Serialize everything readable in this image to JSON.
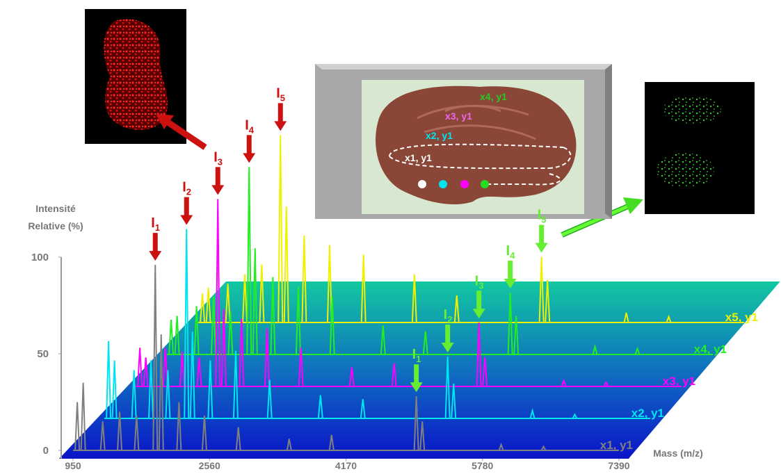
{
  "chart_data": {
    "type": "waterfall",
    "ylabel": [
      "Intensité",
      "Relative  (%)"
    ],
    "xlabel": "Mass (m/z)",
    "xlim": [
      950,
      7390
    ],
    "xticks": [
      950,
      2560,
      4170,
      5780,
      7390
    ],
    "ylim": [
      0,
      100
    ],
    "yticks": [
      0,
      50,
      100
    ],
    "x": [
      1000,
      1070,
      1300,
      1500,
      1700,
      1920,
      1990,
      2200,
      2500,
      2900,
      3500,
      4000,
      5000,
      5070,
      6000,
      6500
    ],
    "series": [
      {
        "name": "x1, y1",
        "color": "#808080",
        "values": [
          25,
          35,
          15,
          20,
          18,
          96,
          60,
          25,
          18,
          12,
          6,
          8,
          28,
          15,
          3,
          2
        ]
      },
      {
        "name": "x2, y1",
        "color": "#00e5f0",
        "values": [
          40,
          30,
          25,
          30,
          25,
          98,
          45,
          30,
          35,
          20,
          12,
          10,
          32,
          18,
          4,
          2
        ]
      },
      {
        "name": "x3, y1",
        "color": "#ff00ff",
        "values": [
          20,
          15,
          20,
          18,
          15,
          97,
          40,
          35,
          30,
          20,
          10,
          12,
          33,
          15,
          3,
          2
        ]
      },
      {
        "name": "x4, y1",
        "color": "#22ee22",
        "values": [
          18,
          20,
          25,
          30,
          22,
          97,
          55,
          40,
          35,
          30,
          15,
          12,
          32,
          20,
          4,
          3
        ]
      },
      {
        "name": "x5, y1",
        "color": "#f0f000",
        "values": [
          15,
          18,
          20,
          25,
          30,
          97,
          60,
          45,
          40,
          35,
          25,
          14,
          34,
          22,
          5,
          3
        ]
      }
    ],
    "peak_arrows": {
      "low": {
        "color": "#cc1111",
        "labels": [
          {
            "text": "I",
            "sub": "1"
          },
          {
            "text": "I",
            "sub": "2"
          },
          {
            "text": "I",
            "sub": "3"
          },
          {
            "text": "I",
            "sub": "4"
          },
          {
            "text": "I",
            "sub": "5"
          }
        ]
      },
      "high": {
        "color": "#66ee33",
        "labels": [
          {
            "text": "I",
            "sub": "1"
          },
          {
            "text": "I",
            "sub": "2"
          },
          {
            "text": "I",
            "sub": "3"
          },
          {
            "text": "I",
            "sub": "4"
          },
          {
            "text": "I",
            "sub": "5"
          }
        ]
      }
    },
    "tissue_labels": [
      "x4, y1",
      "x3, y1",
      "x2, y1",
      "x1, y1"
    ]
  }
}
